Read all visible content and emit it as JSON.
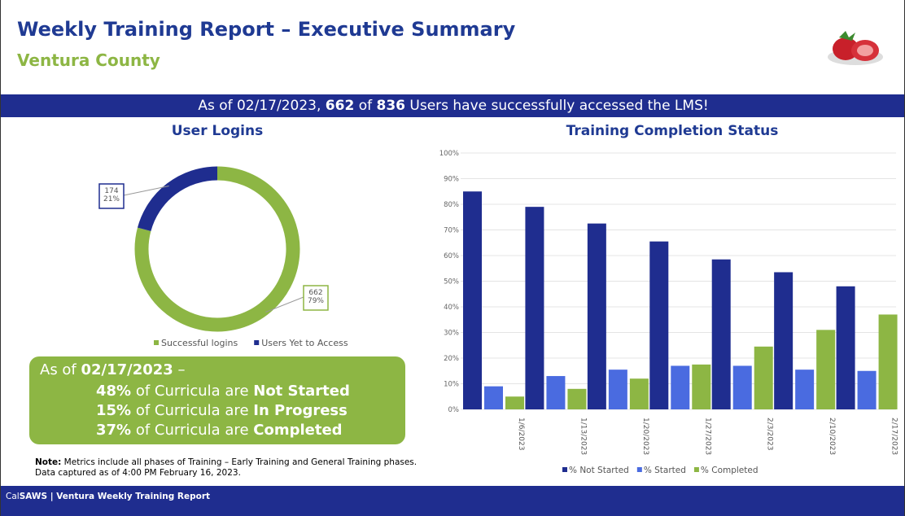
{
  "header": {
    "title": "Weekly Training Report – Executive Summary",
    "subtitle": "Ventura County"
  },
  "banner": {
    "parts": [
      {
        "text": "As of 02/17/2023, "
      },
      {
        "text": "662",
        "bold": true
      },
      {
        "text": " of "
      },
      {
        "text": "836",
        "bold": true
      },
      {
        "text": " Users have successfully accessed the LMS!"
      }
    ]
  },
  "summary": {
    "lines": [
      [
        {
          "text": "As of "
        },
        {
          "text": "02/17/2023",
          "bold": true
        },
        {
          "text": " –"
        }
      ],
      [
        {
          "text": "48%",
          "bold": true
        },
        {
          "text": " of Curricula are "
        },
        {
          "text": "Not Started",
          "bold": true
        }
      ],
      [
        {
          "text": "15%",
          "bold": true
        },
        {
          "text": " of Curricula are "
        },
        {
          "text": "In Progress",
          "bold": true
        }
      ],
      [
        {
          "text": "37%",
          "bold": true
        },
        {
          "text": " of Curricula are "
        },
        {
          "text": "Completed",
          "bold": true
        }
      ]
    ]
  },
  "note": {
    "parts": [
      {
        "text": "Note:",
        "bold": true
      },
      {
        "text": " Metrics include all phases of Training – Early Training and General Training phases. Data captured as of 4:00 PM February 16, 2023."
      }
    ]
  },
  "footer": {
    "parts": [
      {
        "text": "Cal"
      },
      {
        "text": "SAWS",
        "bold": true
      },
      {
        "text": " | Ventura Weekly Training Report",
        "bold": true
      }
    ]
  },
  "chart_data": [
    {
      "type": "donut",
      "title": "User Logins",
      "categories": [
        "Successful logins",
        "Users Yet to Access"
      ],
      "values": [
        662,
        174
      ],
      "value_labels": [
        [
          "662",
          "79%"
        ],
        [
          "174",
          "21%"
        ]
      ],
      "colors": [
        "#8db644",
        "#1f2d8f"
      ],
      "legend": "bottom"
    },
    {
      "type": "bar",
      "title": "Training Completion Status",
      "categories": [
        "1/6/2023",
        "1/13/2023",
        "1/20/2023",
        "1/27/2023",
        "2/3/2023",
        "2/10/2023",
        "2/17/2023"
      ],
      "series": [
        {
          "name": "% Not Started",
          "color": "#1f2d8f",
          "values": [
            85,
            79,
            72.5,
            65.5,
            58.5,
            53.5,
            48
          ]
        },
        {
          "name": "% Started",
          "color": "#4a6be0",
          "values": [
            9,
            13,
            15.5,
            17,
            17,
            15.5,
            15
          ]
        },
        {
          "name": "% Completed",
          "color": "#8db644",
          "values": [
            5,
            8,
            12,
            17.5,
            24.5,
            31,
            37
          ]
        }
      ],
      "ylim": [
        0,
        100
      ],
      "yticks": [
        {
          "value": 0,
          "label": "0%"
        },
        {
          "value": 10,
          "label": "10%"
        },
        {
          "value": 20,
          "label": "20%"
        },
        {
          "value": 30,
          "label": "30%"
        },
        {
          "value": 40,
          "label": "40%"
        },
        {
          "value": 50,
          "label": "50%"
        },
        {
          "value": 60,
          "label": "60%"
        },
        {
          "value": 70,
          "label": "70%"
        },
        {
          "value": 80,
          "label": "80%"
        },
        {
          "value": 90,
          "label": "90%"
        },
        {
          "value": 100,
          "label": "100%"
        }
      ],
      "grid": true,
      "legend": "bottom"
    }
  ]
}
